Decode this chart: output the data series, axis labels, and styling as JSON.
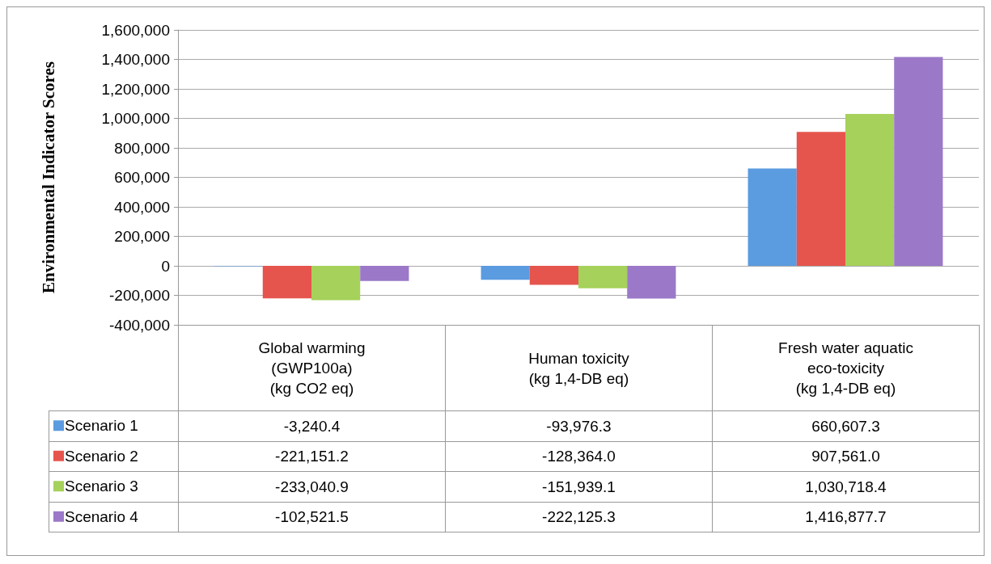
{
  "chart_data": {
    "type": "bar",
    "ylabel": "Environmental Indicator Scores",
    "categories": [
      "Global warming\n(GWP100a)\n(kg CO2 eq)",
      "Human toxicity\n(kg 1,4-DB eq)",
      "Fresh water aquatic\neco-toxicity\n(kg 1,4-DB eq)"
    ],
    "series": [
      {
        "name": "Scenario 1",
        "color": "#5b9be0",
        "values": [
          -3240.4,
          -93976.3,
          660607.3
        ],
        "value_labels": [
          "-3,240.4",
          "-93,976.3",
          "660,607.3"
        ]
      },
      {
        "name": "Scenario 2",
        "color": "#e5554d",
        "values": [
          -221151.2,
          -128364.0,
          907561.0
        ],
        "value_labels": [
          "-221,151.2",
          "-128,364.0",
          "907,561.0"
        ]
      },
      {
        "name": "Scenario 3",
        "color": "#a6d15a",
        "values": [
          -233040.9,
          -151939.1,
          1030718.4
        ],
        "value_labels": [
          "-233,040.9",
          "-151,939.1",
          "1,030,718.4"
        ]
      },
      {
        "name": "Scenario 4",
        "color": "#9b78c8",
        "values": [
          -102521.5,
          -222125.3,
          1416877.7
        ],
        "value_labels": [
          "-102,521.5",
          "-222,125.3",
          "1,416,877.7"
        ]
      }
    ],
    "ylim": [
      -400000,
      1600000
    ],
    "yticks": [
      {
        "value": -400000,
        "label": "-400,000"
      },
      {
        "value": -200000,
        "label": "-200,000"
      },
      0,
      {
        "value": 200000,
        "label": "200,000"
      },
      {
        "value": 400000,
        "label": "400,000"
      },
      {
        "value": 600000,
        "label": "600,000"
      },
      {
        "value": 800000,
        "label": "800,000"
      },
      {
        "value": 1000000,
        "label": "1,000,000"
      },
      {
        "value": 1200000,
        "label": "1,200,000"
      },
      {
        "value": 1400000,
        "label": "1,400,000"
      },
      {
        "value": 1600000,
        "label": "1,600,000"
      }
    ],
    "grid": "y",
    "legend": "bottom"
  }
}
